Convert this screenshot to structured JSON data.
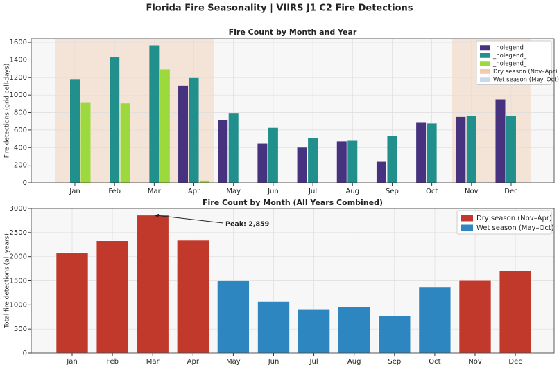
{
  "title": "Florida Fire Seasonality  |  VIIRS J1 C2 Fire Detections",
  "chart_data": [
    {
      "type": "grouped-bar",
      "title": "Fire Count by Month and Year",
      "y_label": "Fire detections (grid cell-days)",
      "categories": [
        "Jan",
        "Feb",
        "Mar",
        "Apr",
        "May",
        "Jun",
        "Jul",
        "Aug",
        "Sep",
        "Oct",
        "Nov",
        "Dec"
      ],
      "series": [
        {
          "name": "_nolegend_",
          "color": "#46327e",
          "values": [
            null,
            null,
            null,
            1105,
            710,
            445,
            400,
            470,
            240,
            690,
            750,
            950
          ]
        },
        {
          "name": "_nolegend_",
          "color": "#21908d",
          "values": [
            1180,
            1430,
            1565,
            1200,
            795,
            625,
            510,
            485,
            535,
            675,
            760,
            765
          ]
        },
        {
          "name": "_nolegend_",
          "color": "#9bd93c",
          "values": [
            910,
            905,
            1290,
            25,
            null,
            null,
            null,
            null,
            null,
            null,
            null,
            null
          ]
        }
      ],
      "spans": [
        {
          "name": "Dry season (Nov–Apr)",
          "color": "#f0b891",
          "ranges": [
            [
              "Jan",
              "Apr"
            ],
            [
              "Nov",
              "Dec"
            ]
          ]
        },
        {
          "name": "Wet season (May–Oct)",
          "color": "#b4cde6",
          "ranges": []
        }
      ],
      "ylim": [
        0,
        1640
      ],
      "yticks": [
        0,
        200,
        400,
        600,
        800,
        1000,
        1200,
        1400,
        1600
      ],
      "grid": true,
      "legend": "upper right"
    },
    {
      "type": "bar",
      "title": "Fire Count by Month (All Years Combined)",
      "y_label": "Total fire detections (all years)",
      "categories": [
        "Jan",
        "Feb",
        "Mar",
        "Apr",
        "May",
        "Jun",
        "Jul",
        "Aug",
        "Sep",
        "Oct",
        "Nov",
        "Dec"
      ],
      "series": [
        {
          "name": "Dry season (Nov–Apr)",
          "color": "#c0392b",
          "values": [
            2085,
            2330,
            2859,
            2340,
            null,
            null,
            null,
            null,
            null,
            null,
            1505,
            1710
          ]
        },
        {
          "name": "Wet season (May–Oct)",
          "color": "#2e86c1",
          "values": [
            null,
            null,
            null,
            null,
            1500,
            1070,
            915,
            960,
            770,
            1365,
            null,
            null
          ]
        }
      ],
      "annotation": {
        "text": "Peak: 2,859",
        "category": "Mar",
        "value": 2859
      },
      "ylim": [
        0,
        3000
      ],
      "yticks": [
        0,
        500,
        1000,
        1500,
        2000,
        2500,
        3000
      ],
      "grid": true,
      "legend": "upper right"
    }
  ]
}
